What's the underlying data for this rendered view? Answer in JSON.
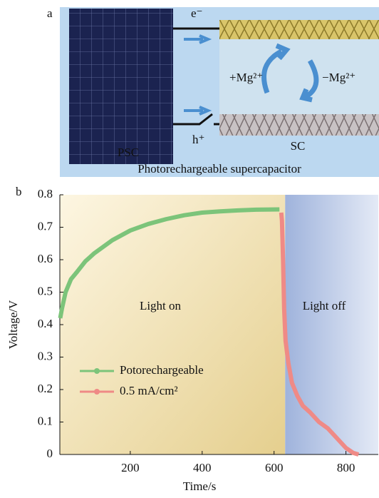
{
  "panel_a": {
    "label": "a",
    "electron": "e⁻",
    "hole": "h⁺",
    "plus_mg": "+Mg²⁺",
    "minus_mg": "−Mg²⁺",
    "psc": "PSC",
    "sc": "SC",
    "caption": "Photorechargeable supercapacitor"
  },
  "chart_data": {
    "type": "line",
    "panel_label": "b",
    "xlabel": "Time/s",
    "ylabel": "Voltage/V",
    "annotations": [
      "Light on",
      "Light off"
    ],
    "xlim": [
      4,
      890
    ],
    "xticks": [
      200,
      400,
      600,
      800
    ],
    "ylim": [
      0,
      0.8
    ],
    "yticks": [
      0,
      0.1,
      0.2,
      0.3,
      0.4,
      0.5,
      0.6,
      0.7,
      0.8
    ],
    "series": [
      {
        "name": "Potorechargeable",
        "color": "#7cc47a",
        "x": [
          5,
          10,
          20,
          35,
          50,
          75,
          100,
          150,
          200,
          250,
          300,
          350,
          400,
          450,
          500,
          550,
          615
        ],
        "values": [
          0.42,
          0.45,
          0.5,
          0.54,
          0.56,
          0.595,
          0.62,
          0.66,
          0.69,
          0.71,
          0.725,
          0.737,
          0.745,
          0.749,
          0.752,
          0.754,
          0.755
        ]
      },
      {
        "name": "0.5 mA/cm²",
        "color": "#ef8a86",
        "x": [
          620,
          622,
          625,
          628,
          632,
          640,
          650,
          665,
          680,
          700,
          725,
          750,
          775,
          800,
          820,
          835
        ],
        "values": [
          0.745,
          0.72,
          0.6,
          0.45,
          0.35,
          0.28,
          0.22,
          0.18,
          0.15,
          0.13,
          0.1,
          0.08,
          0.05,
          0.02,
          0.005,
          0
        ]
      }
    ]
  }
}
